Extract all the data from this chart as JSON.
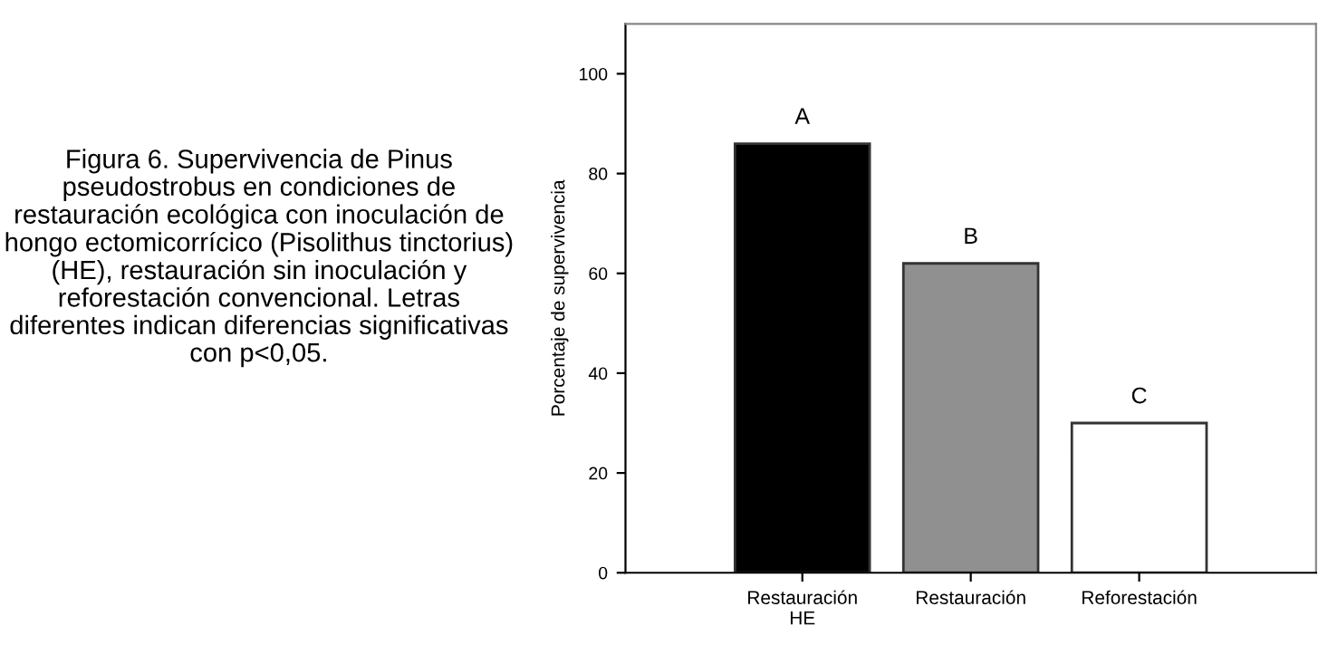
{
  "chart_data": {
    "type": "bar",
    "categories": [
      "Restauración\nHE",
      "Restauración",
      "Reforestación"
    ],
    "values": [
      86,
      62,
      30
    ],
    "colors": [
      "#000000",
      "#909090",
      "#ffffff"
    ],
    "ylabel": "Porcentaje de supervivencia",
    "ylim": [
      0,
      110
    ],
    "yticks": [
      0,
      20,
      40,
      60,
      80,
      100
    ],
    "grid": false,
    "legend": false,
    "annotations": [
      {
        "text": "A",
        "x": "Restauración\nHE",
        "y": 86
      },
      {
        "text": "B",
        "x": "Restauración",
        "y": 62
      },
      {
        "text": "C",
        "x": "Reforestación",
        "y": 30
      },
      "Figura 6. Supervivencia de Pinus pseudostrobus en condiciones de restauración ecológica con inoculación de hongo ectomicorrícico (Pisolithus tinctorius) (HE), restauración sin inoculación y reforestación convencional. Letras diferentes indican diferencias significativas con p<0,05."
    ]
  }
}
